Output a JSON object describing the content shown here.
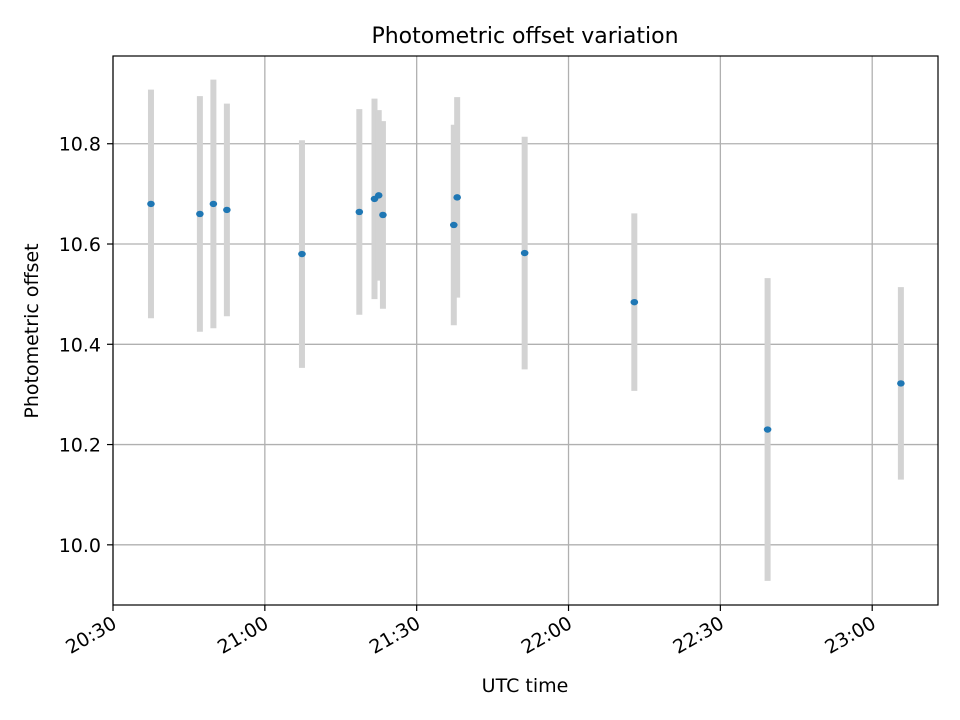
{
  "chart_data": {
    "type": "scatter",
    "title": "Photometric offset variation",
    "xlabel": "UTC time",
    "ylabel": "Photometric offset",
    "xlim": [
      "20:30",
      "23:13"
    ],
    "ylim": [
      9.88,
      10.975
    ],
    "grid": true,
    "x_ticks": [
      "20:30",
      "21:00",
      "21:30",
      "22:00",
      "22:30",
      "23:00"
    ],
    "y_ticks": [
      "10.0",
      "10.2",
      "10.4",
      "10.6",
      "10.8"
    ],
    "points": [
      {
        "x": "20:37:30",
        "y": 10.68,
        "err": 0.228
      },
      {
        "x": "20:47:10",
        "y": 10.66,
        "err": 0.235
      },
      {
        "x": "20:49:50",
        "y": 10.68,
        "err": 0.248
      },
      {
        "x": "20:52:30",
        "y": 10.668,
        "err": 0.212
      },
      {
        "x": "21:07:20",
        "y": 10.58,
        "err": 0.227
      },
      {
        "x": "21:18:40",
        "y": 10.664,
        "err": 0.205
      },
      {
        "x": "21:21:40",
        "y": 10.69,
        "err": 0.2
      },
      {
        "x": "21:22:30",
        "y": 10.697,
        "err": 0.17
      },
      {
        "x": "21:23:20",
        "y": 10.658,
        "err": 0.187
      },
      {
        "x": "21:37:20",
        "y": 10.638,
        "err": 0.2
      },
      {
        "x": "21:38:00",
        "y": 10.693,
        "err": 0.2
      },
      {
        "x": "21:51:20",
        "y": 10.582,
        "err": 0.232
      },
      {
        "x": "22:13:00",
        "y": 10.484,
        "err": 0.177
      },
      {
        "x": "22:39:20",
        "y": 10.23,
        "err": 0.302
      },
      {
        "x": "23:05:40",
        "y": 10.322,
        "err": 0.192
      }
    ],
    "marker_color": "#1f77b4",
    "errorbar_color": "#d3d3d3",
    "grid_color": "#b0b0b0"
  }
}
